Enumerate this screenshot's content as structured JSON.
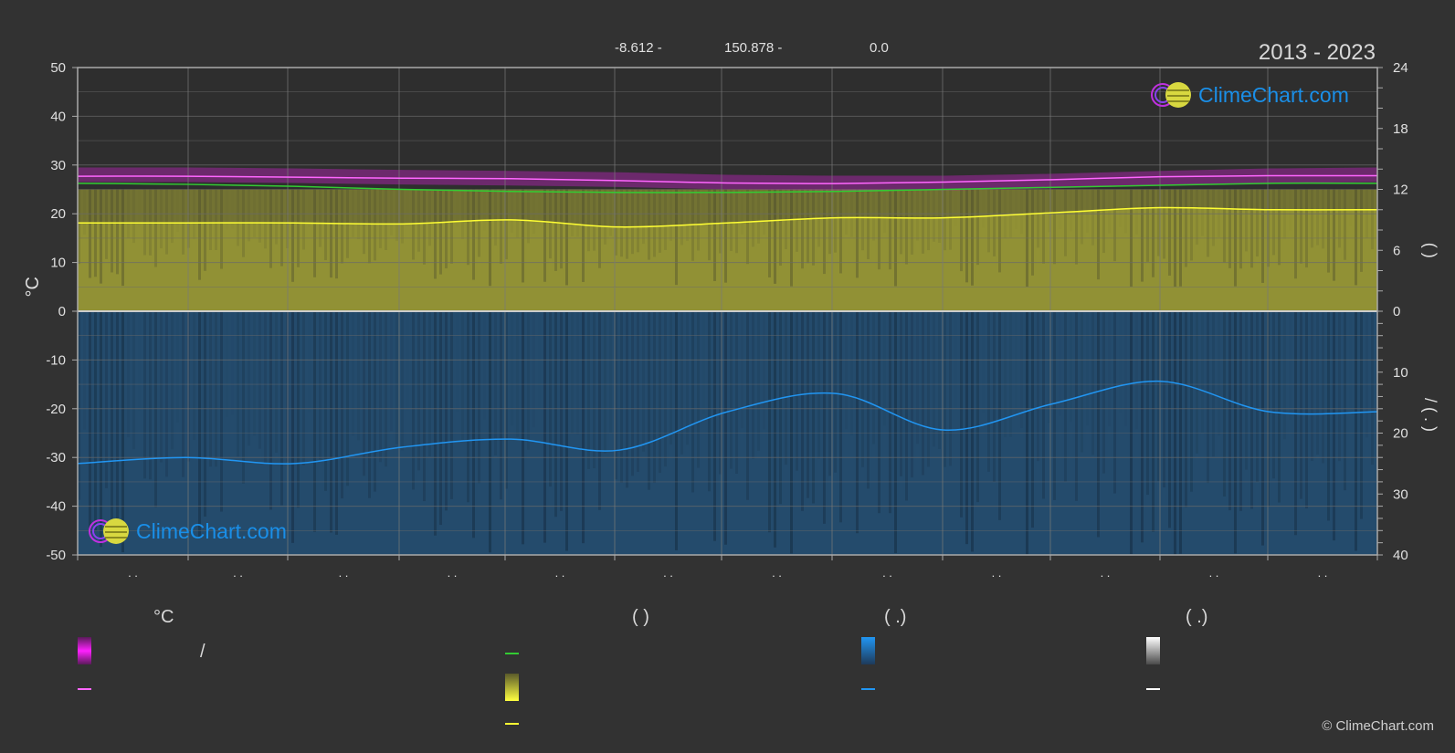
{
  "header": {
    "lat": "-8.612 -",
    "lon": "150.878 -",
    "elev": "0.0",
    "range": "2013 - 2023"
  },
  "logo_text": "ClimeChart.com",
  "copyright": "© ClimeChart.com",
  "legend": {
    "col1_title": "°C",
    "col1_slash": "/",
    "col2_title": "(          )",
    "col3_title": "(    .)",
    "col4_title": "(    .)"
  },
  "colors": {
    "background": "#323232",
    "tmax_band": "#e020e0",
    "tmean_line": "#ff66ff",
    "daylight_line": "#33cc33",
    "sunshine_area": "#c8c83a",
    "sunshine_line": "#ffff33",
    "precip_area": "#1e64a0",
    "precip_line": "#2196f3",
    "snow_line": "#ffffff"
  },
  "chart_data": {
    "type": "line",
    "x_tick_labels": [
      ". .",
      ". .",
      ". .",
      ". .",
      ". .",
      ". .",
      ". .",
      ". .",
      ". .",
      ". .",
      ". .",
      ". ."
    ],
    "left_axis": {
      "label": "°C",
      "ylim": [
        -50,
        50
      ],
      "ticks": [
        "50",
        "40",
        "30",
        "20",
        "10",
        "0",
        "-10",
        "-20",
        "-30",
        "-40",
        "-50"
      ]
    },
    "right_axis_top": {
      "ylim": [
        0,
        24
      ],
      "ticks": [
        "24",
        "18",
        "12",
        "6",
        "0"
      ],
      "label": "(    )"
    },
    "right_axis_bottom": {
      "ylim": [
        0,
        40
      ],
      "ticks": [
        "0",
        "10",
        "20",
        "30",
        "40"
      ],
      "label": "/    (  .  )"
    },
    "x": [
      0,
      1,
      2,
      3,
      4,
      5,
      6,
      7,
      8,
      9,
      10,
      11,
      12
    ],
    "series": [
      {
        "key": "tmax_band_top",
        "values": [
          29.5,
          29.5,
          29.3,
          29.0,
          28.8,
          28.5,
          28.0,
          27.8,
          27.8,
          28.2,
          28.8,
          29.3,
          29.5
        ]
      },
      {
        "key": "tmax_band_bottom",
        "values": [
          26.5,
          26.5,
          26.3,
          26.0,
          25.8,
          25.5,
          25.0,
          24.8,
          24.8,
          25.2,
          25.8,
          26.3,
          26.5
        ]
      },
      {
        "key": "tmean",
        "values": [
          27.7,
          27.7,
          27.5,
          27.3,
          27.2,
          26.8,
          26.3,
          26.2,
          26.5,
          27.0,
          27.6,
          27.8,
          27.8
        ]
      },
      {
        "key": "daylight",
        "values": [
          12.6,
          12.5,
          12.3,
          12.0,
          11.8,
          11.7,
          11.7,
          11.8,
          12.0,
          12.2,
          12.4,
          12.6,
          12.6
        ]
      },
      {
        "key": "sunshine",
        "values": [
          8.7,
          8.7,
          8.7,
          8.6,
          9.0,
          8.3,
          8.7,
          9.2,
          9.2,
          9.7,
          10.2,
          10.0,
          10.0
        ]
      },
      {
        "key": "precipitation",
        "values": [
          25.0,
          24.0,
          25.0,
          22.3,
          21.0,
          22.8,
          16.5,
          13.5,
          19.5,
          15.2,
          11.5,
          16.5,
          16.5
        ]
      }
    ]
  }
}
